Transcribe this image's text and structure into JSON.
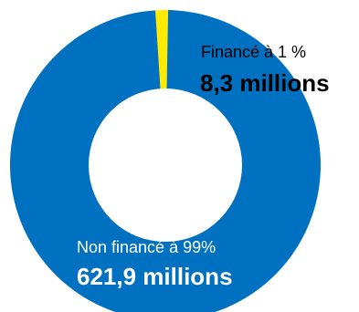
{
  "chart_data": {
    "type": "pie",
    "variant": "donut",
    "slices": [
      {
        "label": "Financé à 1 %",
        "value_label": "8,3 millions",
        "value": 8.3,
        "unit": "millions",
        "percent": 1,
        "color": "#ffea00",
        "text_color": "#000000"
      },
      {
        "label": "Non financé à 99%",
        "value_label": "621,9 millions",
        "value": 621.9,
        "unit": "millions",
        "percent": 99,
        "color": "#0070c0",
        "text_color": "#ffffff"
      }
    ]
  }
}
